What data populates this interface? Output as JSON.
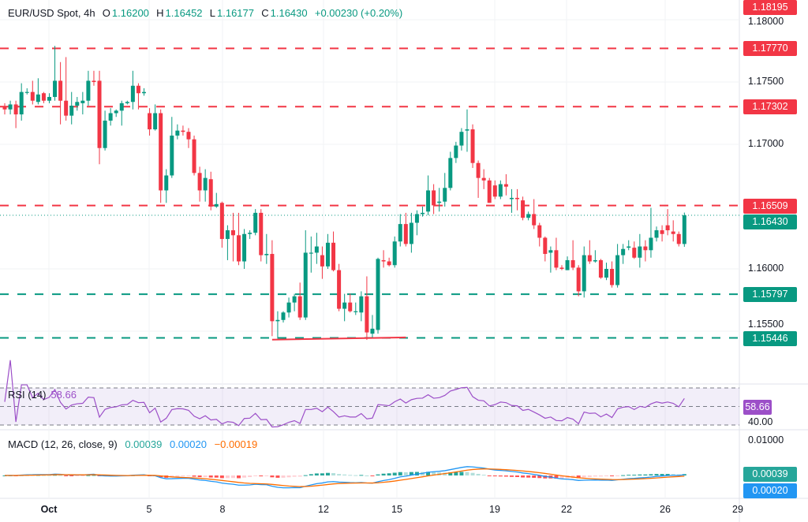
{
  "header": {
    "symbol": "EUR/USD Spot, 4h",
    "o_label": "O",
    "o": "1.16200",
    "h_label": "H",
    "h": "1.16452",
    "l_label": "L",
    "l": "1.16177",
    "c_label": "C",
    "c": "1.16430",
    "change": "+0.00230 (+0.20%)"
  },
  "colors": {
    "up": "#089981",
    "down": "#F23645",
    "rsi": "#9C4FC8",
    "macd": "#2196F3",
    "signal": "#FF6D00"
  },
  "chart_data": {
    "type": "candlestick",
    "interval": "4h",
    "price_axis_ticks": [
      "1.18000",
      "1.17500",
      "1.17000",
      "1.16000",
      "1.15500"
    ],
    "time_axis_ticks": [
      "Oct",
      "5",
      "8",
      "12",
      "15",
      "19",
      "22",
      "26",
      "29"
    ],
    "ylim": [
      1.1525,
      1.183
    ],
    "grid": true,
    "resistance_levels": [
      {
        "price": 1.1777,
        "label": "1.17770"
      },
      {
        "price": 1.17302,
        "label": "1.17302"
      },
      {
        "price": 1.16509,
        "label": "1.16509"
      }
    ],
    "top_label": {
      "price": 1.18195,
      "label": "1.18195"
    },
    "support_levels": [
      {
        "price": 1.15797,
        "label": "1.15797"
      },
      {
        "price": 1.15446,
        "label": "1.15446"
      }
    ],
    "last_price": {
      "price": 1.1643,
      "label": "1.16430"
    },
    "trendline": {
      "from_bar": 48,
      "to_bar": 72,
      "from_price": 1.15432,
      "to_price": 1.1545
    },
    "candles_ohlc": [
      [
        1.173,
        1.1733,
        1.1724,
        1.1728
      ],
      [
        1.1728,
        1.1735,
        1.1724,
        1.1732
      ],
      [
        1.1732,
        1.1735,
        1.1713,
        1.1724
      ],
      [
        1.1724,
        1.1749,
        1.1719,
        1.1742
      ],
      [
        1.1742,
        1.1745,
        1.174,
        1.1742
      ],
      [
        1.1742,
        1.1751,
        1.1732,
        1.1735
      ],
      [
        1.1734,
        1.1753,
        1.1732,
        1.174
      ],
      [
        1.1741,
        1.1742,
        1.1733,
        1.1735
      ],
      [
        1.1735,
        1.1741,
        1.1733,
        1.1738
      ],
      [
        1.1738,
        1.1779,
        1.1735,
        1.1751
      ],
      [
        1.1751,
        1.1766,
        1.1716,
        1.1735
      ],
      [
        1.1735,
        1.177,
        1.1719,
        1.1723
      ],
      [
        1.1723,
        1.1742,
        1.1716,
        1.1731
      ],
      [
        1.1731,
        1.1738,
        1.1727,
        1.1734
      ],
      [
        1.1733,
        1.1742,
        1.1724,
        1.1735
      ],
      [
        1.1735,
        1.1759,
        1.1731,
        1.1751
      ],
      [
        1.1751,
        1.1759,
        1.1747,
        1.175
      ],
      [
        1.1751,
        1.1759,
        1.1684,
        1.1697
      ],
      [
        1.1697,
        1.1727,
        1.1695,
        1.1719
      ],
      [
        1.1719,
        1.1729,
        1.1715,
        1.1725
      ],
      [
        1.1725,
        1.1728,
        1.1722,
        1.1727
      ],
      [
        1.1727,
        1.1735,
        1.1715,
        1.1733
      ],
      [
        1.1733,
        1.1735,
        1.1732,
        1.1734
      ],
      [
        1.1734,
        1.1759,
        1.1728,
        1.1747
      ],
      [
        1.1747,
        1.1749,
        1.1728,
        1.1741
      ],
      [
        1.1741,
        1.1745,
        1.1739,
        1.1742
      ],
      [
        1.1725,
        1.1729,
        1.1707,
        1.1712
      ],
      [
        1.1712,
        1.1732,
        1.1711,
        1.1725
      ],
      [
        1.1725,
        1.1728,
        1.1653,
        1.1663
      ],
      [
        1.1663,
        1.168,
        1.1653,
        1.1675
      ],
      [
        1.1675,
        1.1722,
        1.1673,
        1.1707
      ],
      [
        1.1707,
        1.1716,
        1.1704,
        1.1711
      ],
      [
        1.1711,
        1.1715,
        1.1707,
        1.171
      ],
      [
        1.171,
        1.1713,
        1.1697,
        1.1704
      ],
      [
        1.1704,
        1.1707,
        1.1675,
        1.1677
      ],
      [
        1.1677,
        1.1682,
        1.1654,
        1.1663
      ],
      [
        1.1663,
        1.168,
        1.1654,
        1.1673
      ],
      [
        1.1672,
        1.1678,
        1.1647,
        1.165
      ],
      [
        1.165,
        1.1661,
        1.1649,
        1.1652
      ],
      [
        1.1653,
        1.1654,
        1.1617,
        1.1624
      ],
      [
        1.1624,
        1.1635,
        1.1607,
        1.1631
      ],
      [
        1.1631,
        1.1645,
        1.1606,
        1.1627
      ],
      [
        1.1627,
        1.1645,
        1.1603,
        1.1606
      ],
      [
        1.1606,
        1.1632,
        1.16,
        1.1628
      ],
      [
        1.1628,
        1.1631,
        1.1624,
        1.1629
      ],
      [
        1.1629,
        1.1648,
        1.1627,
        1.1645
      ],
      [
        1.1645,
        1.1648,
        1.1606,
        1.1611
      ],
      [
        1.1611,
        1.1628,
        1.1604,
        1.1612
      ],
      [
        1.1612,
        1.1623,
        1.1546,
        1.1558
      ],
      [
        1.1558,
        1.1566,
        1.1544,
        1.1559
      ],
      [
        1.1559,
        1.1566,
        1.1557,
        1.1565
      ],
      [
        1.1565,
        1.1577,
        1.1561,
        1.1573
      ],
      [
        1.1573,
        1.158,
        1.1566,
        1.1578
      ],
      [
        1.1578,
        1.1589,
        1.1559,
        1.1561
      ],
      [
        1.1561,
        1.1631,
        1.1559,
        1.1613
      ],
      [
        1.1613,
        1.1626,
        1.1597,
        1.1613
      ],
      [
        1.1613,
        1.1629,
        1.1604,
        1.1618
      ],
      [
        1.1611,
        1.1618,
        1.1592,
        1.1602
      ],
      [
        1.1602,
        1.1628,
        1.16,
        1.1621
      ],
      [
        1.1621,
        1.163,
        1.1598,
        1.1599
      ],
      [
        1.1599,
        1.1604,
        1.1566,
        1.1568
      ],
      [
        1.1568,
        1.158,
        1.1558,
        1.1573
      ],
      [
        1.1573,
        1.158,
        1.1565,
        1.1566
      ],
      [
        1.1566,
        1.1573,
        1.1563,
        1.1566
      ],
      [
        1.1565,
        1.1582,
        1.1558,
        1.1578
      ],
      [
        1.1578,
        1.1594,
        1.1543,
        1.1549
      ],
      [
        1.1548,
        1.1563,
        1.1545,
        1.1552
      ],
      [
        1.1551,
        1.1609,
        1.1548,
        1.1608
      ],
      [
        1.1607,
        1.1615,
        1.1601,
        1.1606
      ],
      [
        1.1606,
        1.1609,
        1.1602,
        1.1603
      ],
      [
        1.1603,
        1.1626,
        1.1601,
        1.1622
      ],
      [
        1.1622,
        1.1644,
        1.1618,
        1.1636
      ],
      [
        1.1636,
        1.1645,
        1.1618,
        1.162
      ],
      [
        1.162,
        1.1645,
        1.1613,
        1.1637
      ],
      [
        1.1637,
        1.1647,
        1.1627,
        1.1644
      ],
      [
        1.1644,
        1.165,
        1.1642,
        1.1645
      ],
      [
        1.1646,
        1.1675,
        1.1643,
        1.1663
      ],
      [
        1.1663,
        1.1668,
        1.1644,
        1.1651
      ],
      [
        1.1653,
        1.1665,
        1.1646,
        1.1654
      ],
      [
        1.1654,
        1.1677,
        1.165,
        1.1665
      ],
      [
        1.1665,
        1.1694,
        1.1663,
        1.1689
      ],
      [
        1.1689,
        1.1702,
        1.1685,
        1.1699
      ],
      [
        1.1699,
        1.1713,
        1.1695,
        1.171
      ],
      [
        1.1711,
        1.1728,
        1.1694,
        1.1712
      ],
      [
        1.1712,
        1.1716,
        1.1681,
        1.1685
      ],
      [
        1.1685,
        1.1687,
        1.1657,
        1.1673
      ],
      [
        1.1673,
        1.168,
        1.1664,
        1.1671
      ],
      [
        1.1671,
        1.1673,
        1.1653,
        1.1653
      ],
      [
        1.1667,
        1.1671,
        1.1656,
        1.1658
      ],
      [
        1.1658,
        1.1671,
        1.1656,
        1.1668
      ],
      [
        1.1668,
        1.1676,
        1.1659,
        1.1666
      ],
      [
        1.1656,
        1.1664,
        1.1645,
        1.1657
      ],
      [
        1.1657,
        1.1664,
        1.1647,
        1.1656
      ],
      [
        1.1655,
        1.1658,
        1.1639,
        1.1641
      ],
      [
        1.1641,
        1.1646,
        1.1639,
        1.1644
      ],
      [
        1.1644,
        1.1656,
        1.1632,
        1.1635
      ],
      [
        1.1635,
        1.1637,
        1.1618,
        1.1625
      ],
      [
        1.1625,
        1.1626,
        1.1606,
        1.1612
      ],
      [
        1.1613,
        1.1618,
        1.1597,
        1.1615
      ],
      [
        1.1615,
        1.1625,
        1.1599,
        1.1601
      ],
      [
        1.1601,
        1.1603,
        1.1599,
        1.16
      ],
      [
        1.1599,
        1.161,
        1.1599,
        1.1607
      ],
      [
        1.1607,
        1.1623,
        1.1599,
        1.1601
      ],
      [
        1.1601,
        1.1603,
        1.1578,
        1.1582
      ],
      [
        1.1582,
        1.1618,
        1.1577,
        1.1611
      ],
      [
        1.1611,
        1.1623,
        1.1604,
        1.1606
      ],
      [
        1.1606,
        1.1615,
        1.1605,
        1.1607
      ],
      [
        1.1607,
        1.1608,
        1.1592,
        1.1593
      ],
      [
        1.1593,
        1.1605,
        1.1591,
        1.16
      ],
      [
        1.16,
        1.1606,
        1.1585,
        1.1587
      ],
      [
        1.1587,
        1.162,
        1.1585,
        1.1611
      ],
      [
        1.1611,
        1.162,
        1.1604,
        1.1616
      ],
      [
        1.1617,
        1.1623,
        1.1615,
        1.1618
      ],
      [
        1.1617,
        1.1622,
        1.1608,
        1.1609
      ],
      [
        1.1609,
        1.1628,
        1.1601,
        1.1618
      ],
      [
        1.1618,
        1.1623,
        1.1606,
        1.1615
      ],
      [
        1.1615,
        1.1649,
        1.1609,
        1.1625
      ],
      [
        1.1625,
        1.1634,
        1.1622,
        1.1631
      ],
      [
        1.1631,
        1.1635,
        1.1622,
        1.1628
      ],
      [
        1.1635,
        1.1648,
        1.1627,
        1.1631
      ],
      [
        1.163,
        1.1639,
        1.1622,
        1.1628
      ],
      [
        1.1628,
        1.163,
        1.1618,
        1.162
      ],
      [
        1.162,
        1.16452,
        1.16177,
        1.1643
      ]
    ]
  },
  "rsi": {
    "title": "RSI (14)",
    "value": "58.66",
    "levels": [
      70,
      50,
      30
    ],
    "axis_label": "40.00"
  },
  "macd": {
    "title": "MACD (12, 26, close, 9)",
    "histogram": "0.00039",
    "macd": "0.00020",
    "signal": "−0.00019",
    "axis_label": "0.01000"
  }
}
